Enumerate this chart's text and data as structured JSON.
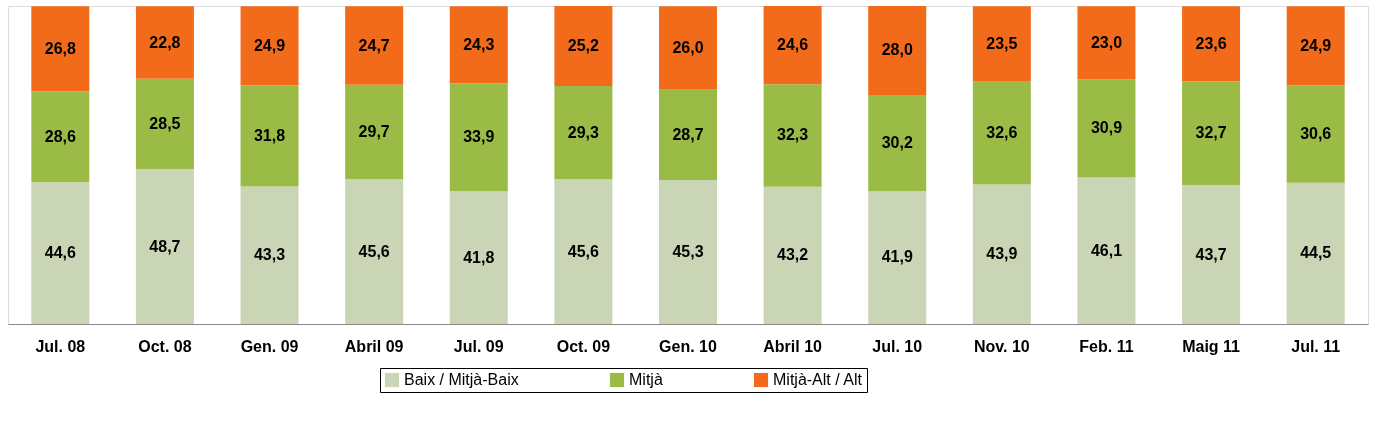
{
  "chart_data": {
    "type": "bar",
    "stacked": true,
    "grid": false,
    "legend": "bottom",
    "tick_labels": "x",
    "categories": [
      "Jul. 08",
      "Oct. 08",
      "Gen. 09",
      "Abril 09",
      "Jul. 09",
      "Oct. 09",
      "Gen. 10",
      "Abril 10",
      "Jul. 10",
      "Nov. 10",
      "Feb. 11",
      "Maig 11",
      "Jul. 11"
    ],
    "series": [
      {
        "name": "Baix / Mitjà-Baix",
        "color": "#cad5b6",
        "values": [
          44.6,
          48.7,
          43.3,
          45.6,
          41.8,
          45.6,
          45.3,
          43.2,
          41.9,
          43.9,
          46.1,
          43.7,
          44.5
        ],
        "value_labels": [
          "44,6",
          "48,7",
          "43,3",
          "45,6",
          "41,8",
          "45,6",
          "45,3",
          "43,2",
          "41,9",
          "43,9",
          "46,1",
          "43,7",
          "44,5"
        ]
      },
      {
        "name": "Mitjà",
        "color": "#9bbb47",
        "values": [
          28.6,
          28.5,
          31.8,
          29.7,
          33.9,
          29.3,
          28.7,
          32.3,
          30.2,
          32.6,
          30.9,
          32.7,
          30.6
        ],
        "value_labels": [
          "28,6",
          "28,5",
          "31,8",
          "29,7",
          "33,9",
          "29,3",
          "28,7",
          "32,3",
          "30,2",
          "32,6",
          "30,9",
          "32,7",
          "30,6"
        ]
      },
      {
        "name": "Mitjà-Alt / Alt",
        "color": "#f26b1b",
        "values": [
          26.8,
          22.8,
          24.9,
          24.7,
          24.3,
          25.2,
          26.0,
          24.6,
          28.0,
          23.5,
          23.0,
          23.6,
          24.9
        ],
        "value_labels": [
          "26,8",
          "22,8",
          "24,9",
          "24,7",
          "24,3",
          "25,2",
          "26,0",
          "24,6",
          "28,0",
          "23,5",
          "23,0",
          "23,6",
          "24,9"
        ]
      }
    ]
  }
}
